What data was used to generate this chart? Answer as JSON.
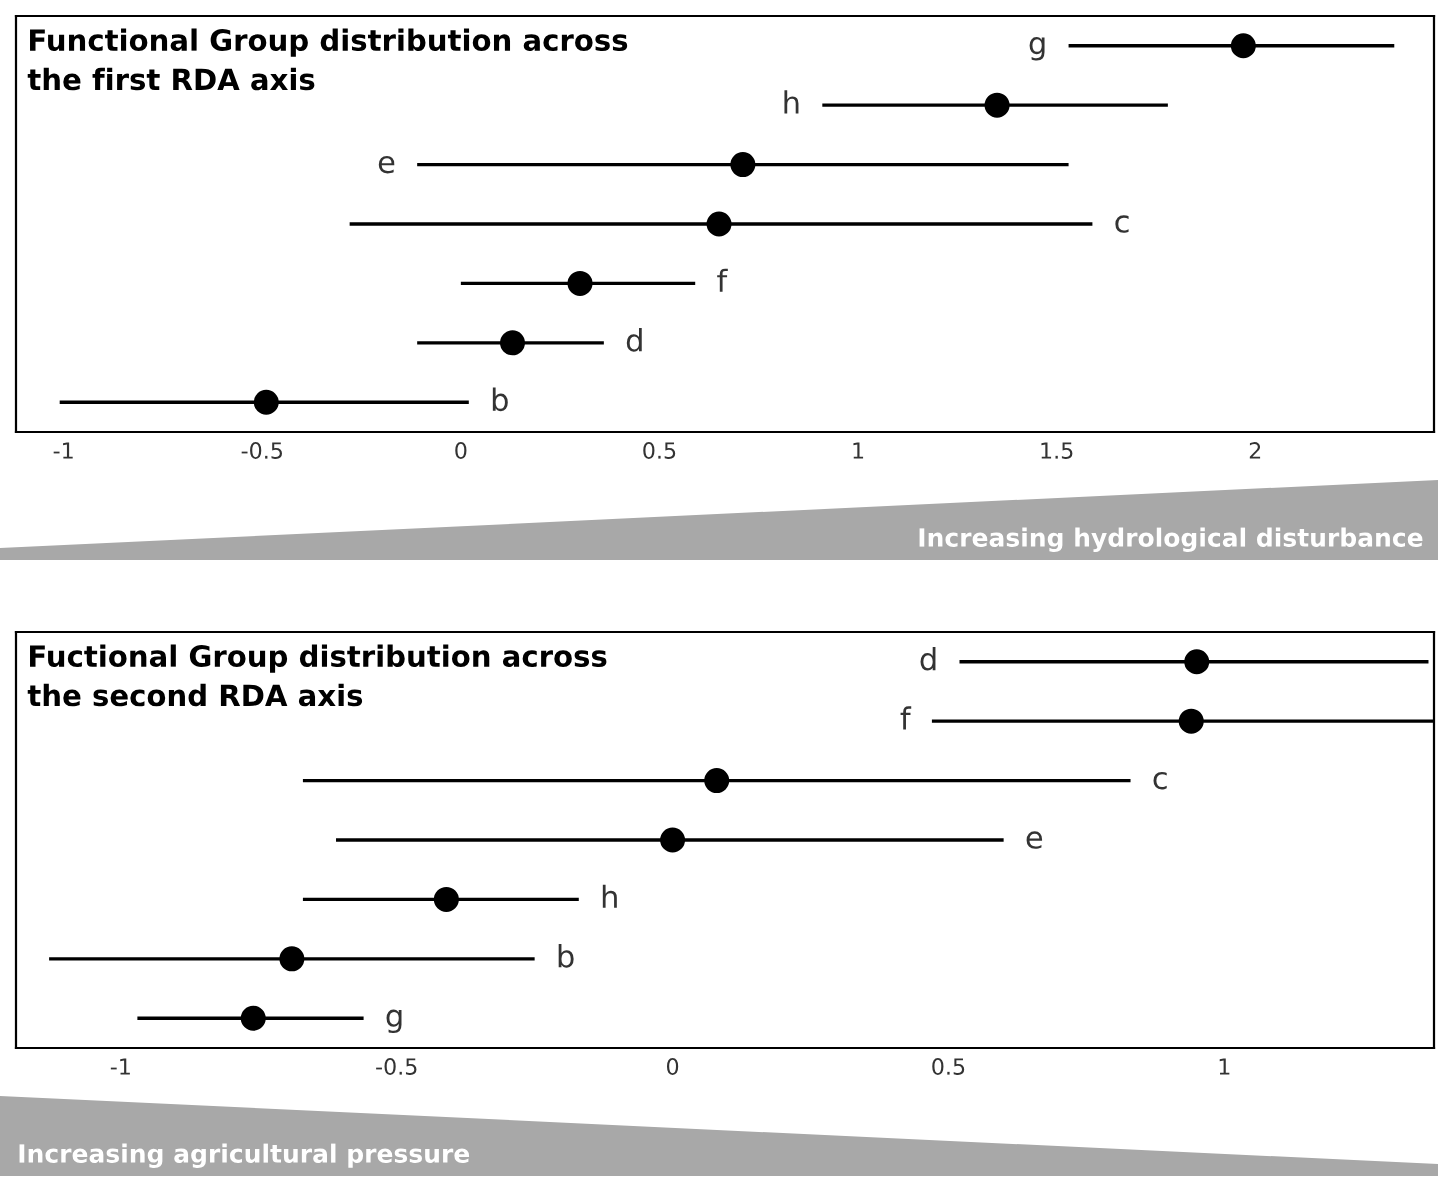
{
  "chart_data": [
    {
      "type": "scatter",
      "title": "Functional Group distribution across\nthe first RDA axis",
      "orientation": "horizontal",
      "tick_labels": "x",
      "grid": false,
      "legend": false,
      "marker": "circle",
      "categories": [
        "g",
        "h",
        "e",
        "c",
        "f",
        "d",
        "b"
      ],
      "series": [
        {
          "color": "#000000",
          "values": [
            1.97,
            1.35,
            0.71,
            0.65,
            0.3,
            0.13,
            -0.49
          ],
          "errors": [
            [
              1.53,
              2.35
            ],
            [
              0.91,
              1.78
            ],
            [
              -0.11,
              1.53
            ],
            [
              -0.28,
              1.59
            ],
            [
              0.0,
              0.59
            ],
            [
              -0.11,
              0.36
            ],
            [
              -1.01,
              0.02
            ]
          ]
        }
      ],
      "xlim": [
        -1.12,
        2.45
      ],
      "xticks": [
        -1,
        -0.5,
        0,
        0.5,
        1,
        1.5,
        2
      ],
      "annotations": [
        "Increasing hydrological disturbance"
      ]
    },
    {
      "type": "scatter",
      "title": "Fuctional Group distribution across\nthe second RDA axis",
      "orientation": "horizontal",
      "tick_labels": "x",
      "grid": false,
      "legend": false,
      "marker": "circle",
      "categories": [
        "d",
        "f",
        "c",
        "e",
        "h",
        "b",
        "g"
      ],
      "series": [
        {
          "color": "#000000",
          "values": [
            0.95,
            0.94,
            0.08,
            0.0,
            -0.41,
            -0.69,
            -0.76
          ],
          "errors": [
            [
              0.52,
              1.37
            ],
            [
              0.47,
              1.38
            ],
            [
              -0.67,
              0.83
            ],
            [
              -0.61,
              0.6
            ],
            [
              -0.67,
              -0.17
            ],
            [
              -1.13,
              -0.25
            ],
            [
              -0.97,
              -0.56
            ]
          ]
        }
      ],
      "xlim": [
        -1.19,
        1.38
      ],
      "xticks": [
        -1,
        -0.5,
        0,
        0.5,
        1
      ],
      "annotations": [
        "Increasing agricultural pressure"
      ]
    }
  ]
}
